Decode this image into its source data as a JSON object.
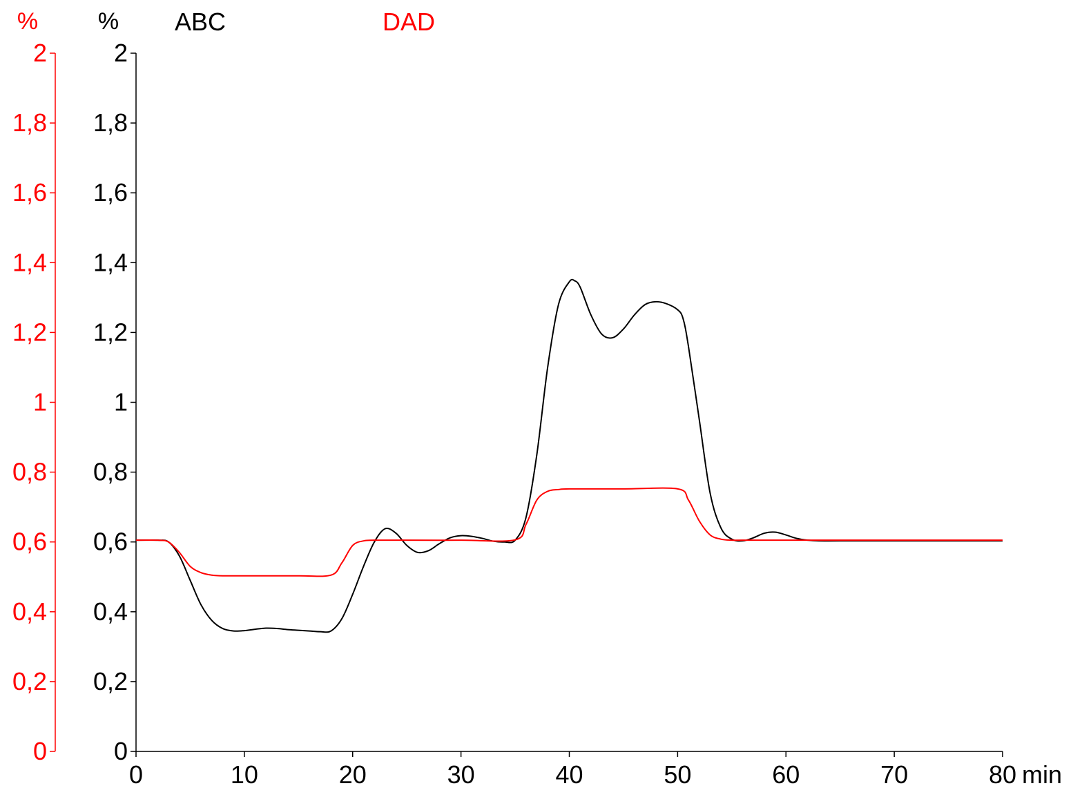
{
  "chart_data": {
    "type": "line",
    "x_unit": "min",
    "x_ticks": [
      "0",
      "10",
      "20",
      "30",
      "40",
      "50",
      "60",
      "70",
      "80"
    ],
    "xlim": [
      0,
      80
    ],
    "ylim": [
      0,
      2
    ],
    "grid": false,
    "axes": [
      {
        "unit": "%",
        "color": "#ff0000",
        "ticks": [
          "0",
          "0,2",
          "0,4",
          "0,6",
          "0,8",
          "1",
          "1,2",
          "1,4",
          "1,6",
          "1,8",
          "2"
        ]
      },
      {
        "unit": "%",
        "color": "#000000",
        "ticks": [
          "0",
          "0,2",
          "0,4",
          "0,6",
          "0,8",
          "1",
          "1,2",
          "1,4",
          "1,6",
          "1,8",
          "2"
        ]
      }
    ],
    "series": [
      {
        "name": "ABC",
        "color": "#000000",
        "x": [
          0,
          2,
          3,
          4,
          5,
          6,
          7,
          8,
          9,
          10,
          11,
          12,
          13,
          14,
          15,
          16,
          17,
          18,
          19,
          20,
          21,
          22,
          23,
          24,
          25,
          26,
          27,
          28,
          29,
          30,
          31,
          32,
          33,
          34,
          35,
          36,
          37,
          38,
          39,
          40,
          40.5,
          41,
          42,
          43,
          44,
          45,
          46,
          47,
          48,
          49,
          50,
          50.5,
          51,
          52,
          53,
          54,
          55,
          56,
          57,
          58,
          59,
          60,
          61,
          62,
          63,
          65,
          70,
          75,
          80
        ],
        "y": [
          0.605,
          0.605,
          0.6,
          0.56,
          0.49,
          0.42,
          0.375,
          0.352,
          0.345,
          0.346,
          0.35,
          0.353,
          0.352,
          0.349,
          0.347,
          0.345,
          0.343,
          0.345,
          0.38,
          0.45,
          0.53,
          0.6,
          0.638,
          0.625,
          0.59,
          0.57,
          0.575,
          0.595,
          0.612,
          0.618,
          0.616,
          0.61,
          0.602,
          0.6,
          0.605,
          0.67,
          0.85,
          1.1,
          1.28,
          1.345,
          1.348,
          1.33,
          1.25,
          1.195,
          1.185,
          1.21,
          1.25,
          1.28,
          1.288,
          1.282,
          1.265,
          1.24,
          1.16,
          0.95,
          0.74,
          0.64,
          0.608,
          0.603,
          0.612,
          0.625,
          0.628,
          0.62,
          0.61,
          0.605,
          0.603,
          0.603,
          0.603,
          0.603,
          0.603
        ]
      },
      {
        "name": "DAD",
        "color": "#ff0000",
        "x": [
          0,
          2,
          3,
          4,
          5,
          6,
          7,
          8,
          10,
          15,
          18,
          19,
          20,
          21,
          22,
          25,
          30,
          35,
          36,
          37,
          38,
          39,
          40,
          45,
          50,
          51,
          52,
          53,
          54,
          55,
          56,
          60,
          65,
          70,
          80
        ],
        "y": [
          0.605,
          0.605,
          0.6,
          0.57,
          0.53,
          0.512,
          0.505,
          0.503,
          0.503,
          0.503,
          0.505,
          0.54,
          0.59,
          0.603,
          0.605,
          0.605,
          0.605,
          0.606,
          0.65,
          0.72,
          0.745,
          0.75,
          0.752,
          0.752,
          0.752,
          0.72,
          0.66,
          0.62,
          0.608,
          0.605,
          0.605,
          0.605,
          0.605,
          0.605,
          0.605
        ]
      }
    ]
  }
}
